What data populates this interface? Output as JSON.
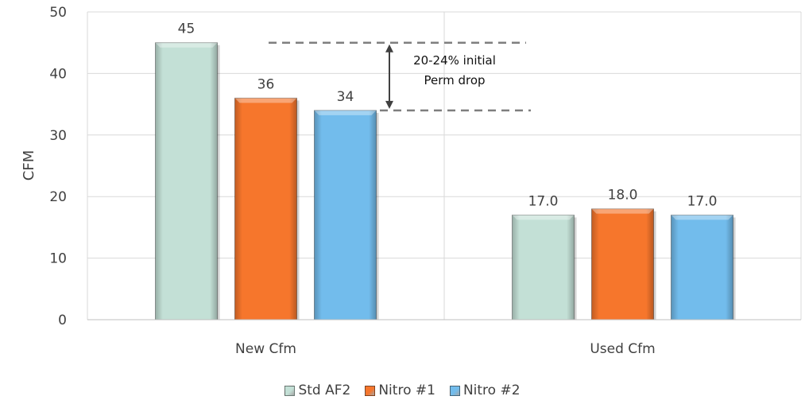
{
  "chart_data": {
    "type": "bar",
    "categories": [
      "New Cfm",
      "Used Cfm"
    ],
    "series": [
      {
        "name": "Std AF2",
        "values": [
          45,
          17.0
        ],
        "labels": [
          "45",
          "17.0"
        ],
        "color": "#c3e0d6"
      },
      {
        "name": "Nitro #1",
        "values": [
          36,
          18.0
        ],
        "labels": [
          "36",
          "18.0"
        ],
        "color": "#f6762c"
      },
      {
        "name": "Nitro #2",
        "values": [
          34,
          17.0
        ],
        "labels": [
          "34",
          "17.0"
        ],
        "color": "#72bcec"
      }
    ],
    "title": "",
    "xlabel": "",
    "ylabel": "CFM",
    "ylim": [
      0,
      50
    ],
    "yticks": [
      "0",
      "10",
      "20",
      "30",
      "40",
      "50"
    ],
    "grid": true,
    "legend_position": "bottom",
    "annotation": {
      "lines": [
        "20-24% initial",
        "Perm drop"
      ],
      "from_value": 45,
      "to_value": 34
    }
  }
}
